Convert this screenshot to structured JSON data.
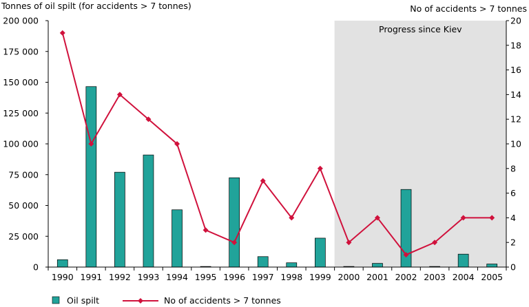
{
  "chart_data": {
    "type": "bar+line",
    "left_axis_title": "Tonnes of oil spilt (for accidents > 7 tonnes)",
    "right_axis_title": "No of accidents > 7 tonnes",
    "categories": [
      "1990",
      "1991",
      "1992",
      "1993",
      "1994",
      "1995",
      "1996",
      "1997",
      "1998",
      "1999",
      "2000",
      "2001",
      "2002",
      "2003",
      "2004",
      "2005"
    ],
    "series": [
      {
        "name": "Oil spilt",
        "type": "bar",
        "axis": "left",
        "color": "#21a39a",
        "values": [
          6000,
          146500,
          77000,
          91000,
          46500,
          500,
          72500,
          8500,
          3500,
          23500,
          500,
          3000,
          63000,
          500,
          10500,
          2500
        ]
      },
      {
        "name": "No of accidents > 7 tonnes",
        "type": "line",
        "axis": "right",
        "color": "#d0113c",
        "marker": "diamond",
        "values": [
          19,
          10,
          14,
          12,
          10,
          3,
          2,
          7,
          4,
          8,
          2,
          4,
          1,
          2,
          4,
          4
        ]
      }
    ],
    "left_axis": {
      "min": 0,
      "max": 200000,
      "ticks": [
        "0",
        "25 000",
        "50 000",
        "75 000",
        "100 000",
        "125 000",
        "150 000",
        "175 000",
        "200 000"
      ]
    },
    "right_axis": {
      "min": 0,
      "max": 20,
      "ticks": [
        "0",
        "2",
        "4",
        "6",
        "8",
        "10",
        "12",
        "14",
        "16",
        "18",
        "20"
      ]
    },
    "shaded_region": {
      "from": "2000",
      "to": "2005",
      "label": "Progress since Kiev",
      "color": "#e2e2e2"
    },
    "grid": false,
    "legend_placement": "bottom"
  }
}
